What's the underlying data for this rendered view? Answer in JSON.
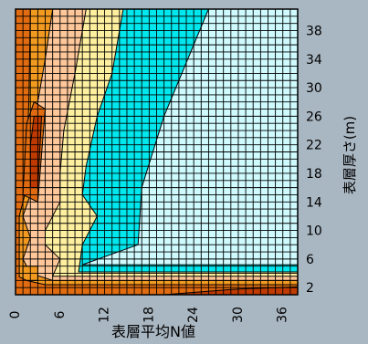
{
  "chart_data": {
    "type": "heatmap",
    "title": "",
    "xlabel": "表層平均N値",
    "ylabel": "表層厚さ(m)",
    "x_ticks": [
      0,
      6,
      12,
      18,
      24,
      30,
      36
    ],
    "y_ticks": [
      2,
      6,
      10,
      14,
      18,
      22,
      26,
      30,
      34,
      38
    ],
    "xlim": [
      0,
      38
    ],
    "ylim": [
      1,
      41
    ],
    "grid": true,
    "legend": "none",
    "levels": [
      {
        "name": "level-6",
        "color": "#c03a00"
      },
      {
        "name": "level-5",
        "color": "#e06b10"
      },
      {
        "name": "level-4",
        "color": "#f29a20"
      },
      {
        "name": "level-3",
        "color": "#ffc79a"
      },
      {
        "name": "level-2",
        "color": "#fff0a0"
      },
      {
        "name": "level-1",
        "color": "#00e8ee"
      },
      {
        "name": "level-0",
        "color": "#cffbff"
      }
    ],
    "regions": [
      {
        "level": "level-0",
        "points": [
          [
            0,
            1
          ],
          [
            38,
            1
          ],
          [
            38,
            41
          ],
          [
            0,
            41
          ]
        ]
      },
      {
        "level": "level-1",
        "points": [
          [
            0,
            1
          ],
          [
            38,
            1
          ],
          [
            38,
            5.2
          ],
          [
            9,
            5.2
          ],
          [
            16.5,
            8
          ],
          [
            17,
            16
          ],
          [
            20,
            26
          ],
          [
            26,
            41
          ],
          [
            0,
            41
          ]
        ]
      },
      {
        "level": "level-2",
        "points": [
          [
            0,
            1
          ],
          [
            38,
            1
          ],
          [
            38,
            4.2
          ],
          [
            8.5,
            4.2
          ],
          [
            9,
            8
          ],
          [
            11,
            12
          ],
          [
            9,
            15
          ],
          [
            9.5,
            19
          ],
          [
            11,
            26
          ],
          [
            13,
            32
          ],
          [
            14.5,
            41
          ],
          [
            0,
            41
          ]
        ]
      },
      {
        "level": "level-3",
        "points": [
          [
            0,
            1
          ],
          [
            38,
            1
          ],
          [
            38,
            3.6
          ],
          [
            5,
            3.6
          ],
          [
            6,
            6
          ],
          [
            4,
            8
          ],
          [
            4,
            10
          ],
          [
            6,
            14
          ],
          [
            6,
            18
          ],
          [
            6.5,
            24
          ],
          [
            8,
            32
          ],
          [
            9.5,
            41
          ],
          [
            0,
            41
          ]
        ]
      },
      {
        "level": "level-4",
        "points": [
          [
            0,
            1
          ],
          [
            38,
            1
          ],
          [
            38,
            3.0
          ],
          [
            5,
            3.0
          ],
          [
            2,
            4
          ],
          [
            1,
            6
          ],
          [
            2,
            9
          ],
          [
            1,
            12
          ],
          [
            2,
            15
          ],
          [
            2.5,
            20
          ],
          [
            3,
            28
          ],
          [
            4,
            34
          ],
          [
            5,
            41
          ],
          [
            0,
            41
          ]
        ]
      },
      {
        "level": "level-4",
        "points": [
          [
            1,
            3
          ],
          [
            3,
            3
          ],
          [
            3,
            5
          ],
          [
            1,
            5
          ]
        ]
      },
      {
        "level": "level-5",
        "points": [
          [
            0,
            1
          ],
          [
            38,
            1
          ],
          [
            38,
            2.4
          ],
          [
            4,
            2.4
          ],
          [
            1.5,
            3
          ],
          [
            0.5,
            3.5
          ],
          [
            0.5,
            12
          ],
          [
            1.5,
            16
          ],
          [
            1.5,
            20
          ],
          [
            1.8,
            28
          ],
          [
            2,
            41
          ],
          [
            0,
            41
          ]
        ]
      },
      {
        "level": "level-5",
        "points": [
          [
            1,
            15
          ],
          [
            3,
            14
          ],
          [
            4,
            27
          ],
          [
            2.5,
            28
          ],
          [
            1.5,
            25
          ]
        ]
      },
      {
        "level": "level-6",
        "points": [
          [
            2,
            16
          ],
          [
            3,
            16
          ],
          [
            3.5,
            26
          ],
          [
            2.5,
            26
          ],
          [
            2,
            22
          ]
        ]
      },
      {
        "level": "level-6",
        "points": [
          [
            20,
            1
          ],
          [
            38,
            1
          ],
          [
            38,
            2.1
          ],
          [
            30,
            1.8
          ]
        ]
      }
    ]
  }
}
